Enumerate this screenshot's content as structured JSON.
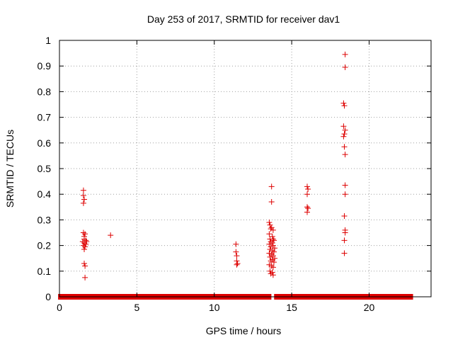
{
  "chart_data": {
    "type": "scatter",
    "title": "Day 253 of 2017, SRMTID for receiver dav1",
    "xlabel": "GPS time / hours",
    "ylabel": "SRMTID / TECUs",
    "xlim": [
      0,
      24
    ],
    "ylim": [
      0,
      1
    ],
    "x_ticks": [
      0,
      5,
      10,
      15,
      20
    ],
    "y_ticks": [
      0,
      0.1,
      0.2,
      0.3,
      0.4,
      0.5,
      0.6,
      0.7,
      0.8,
      0.9,
      1
    ],
    "x_tick_labels": [
      "0",
      "5",
      "10",
      "15",
      "20"
    ],
    "y_tick_labels": [
      "0",
      "0.1",
      "0.2",
      "0.3",
      "0.4",
      "0.5",
      "0.6",
      "0.7",
      "0.8",
      "0.9",
      "1"
    ],
    "grid": true,
    "marker_color": "#dd0000",
    "zero_segments": [
      [
        0.05,
        1.5
      ],
      [
        1.75,
        8.2
      ],
      [
        8.35,
        11.4
      ],
      [
        11.55,
        13.55
      ],
      [
        14.0,
        16.0
      ],
      [
        16.1,
        18.1
      ],
      [
        18.2,
        22.7
      ]
    ],
    "points": [
      [
        1.55,
        0.415
      ],
      [
        1.55,
        0.395
      ],
      [
        1.6,
        0.38
      ],
      [
        1.55,
        0.365
      ],
      [
        1.55,
        0.25
      ],
      [
        1.6,
        0.235
      ],
      [
        1.65,
        0.245
      ],
      [
        1.6,
        0.225
      ],
      [
        1.7,
        0.22
      ],
      [
        1.5,
        0.215
      ],
      [
        1.6,
        0.21
      ],
      [
        1.7,
        0.205
      ],
      [
        1.55,
        0.2
      ],
      [
        1.65,
        0.195
      ],
      [
        1.6,
        0.185
      ],
      [
        1.75,
        0.215
      ],
      [
        1.6,
        0.13
      ],
      [
        1.65,
        0.12
      ],
      [
        1.65,
        0.075
      ],
      [
        3.3,
        0.24
      ],
      [
        11.4,
        0.205
      ],
      [
        11.4,
        0.175
      ],
      [
        11.45,
        0.16
      ],
      [
        11.45,
        0.14
      ],
      [
        11.5,
        0.13
      ],
      [
        11.45,
        0.125
      ],
      [
        13.7,
        0.43
      ],
      [
        13.7,
        0.37
      ],
      [
        13.55,
        0.29
      ],
      [
        13.6,
        0.28
      ],
      [
        13.7,
        0.27
      ],
      [
        13.65,
        0.265
      ],
      [
        13.8,
        0.26
      ],
      [
        13.55,
        0.245
      ],
      [
        13.75,
        0.235
      ],
      [
        13.6,
        0.225
      ],
      [
        13.8,
        0.225
      ],
      [
        13.85,
        0.22
      ],
      [
        13.65,
        0.215
      ],
      [
        13.75,
        0.21
      ],
      [
        13.55,
        0.205
      ],
      [
        13.8,
        0.2
      ],
      [
        13.65,
        0.195
      ],
      [
        13.9,
        0.19
      ],
      [
        13.6,
        0.185
      ],
      [
        13.75,
        0.18
      ],
      [
        13.85,
        0.175
      ],
      [
        13.55,
        0.17
      ],
      [
        13.7,
        0.165
      ],
      [
        13.8,
        0.16
      ],
      [
        13.6,
        0.155
      ],
      [
        13.9,
        0.15
      ],
      [
        13.75,
        0.145
      ],
      [
        13.65,
        0.14
      ],
      [
        13.85,
        0.135
      ],
      [
        13.55,
        0.125
      ],
      [
        13.7,
        0.12
      ],
      [
        13.8,
        0.115
      ],
      [
        13.6,
        0.1
      ],
      [
        13.75,
        0.095
      ],
      [
        13.65,
        0.09
      ],
      [
        13.8,
        0.085
      ],
      [
        16.0,
        0.43
      ],
      [
        16.05,
        0.42
      ],
      [
        16.0,
        0.4
      ],
      [
        16.0,
        0.35
      ],
      [
        16.05,
        0.345
      ],
      [
        16.0,
        0.33
      ],
      [
        18.45,
        0.945
      ],
      [
        18.45,
        0.895
      ],
      [
        18.35,
        0.755
      ],
      [
        18.4,
        0.745
      ],
      [
        18.35,
        0.665
      ],
      [
        18.45,
        0.65
      ],
      [
        18.4,
        0.635
      ],
      [
        18.35,
        0.625
      ],
      [
        18.4,
        0.585
      ],
      [
        18.45,
        0.555
      ],
      [
        18.45,
        0.435
      ],
      [
        18.45,
        0.4
      ],
      [
        18.4,
        0.315
      ],
      [
        18.45,
        0.26
      ],
      [
        18.45,
        0.25
      ],
      [
        18.4,
        0.22
      ],
      [
        18.4,
        0.17
      ]
    ]
  }
}
